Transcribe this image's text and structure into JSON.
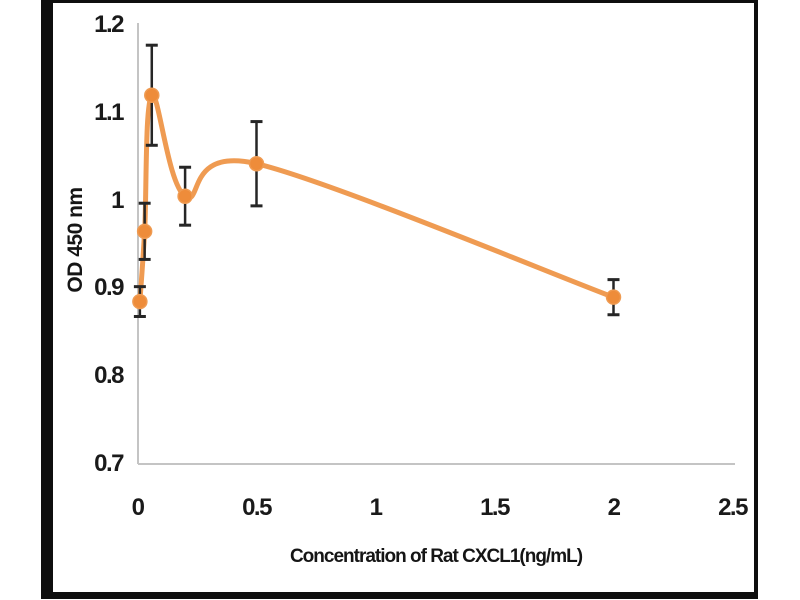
{
  "chart_data": {
    "type": "line",
    "title": "",
    "xlabel": "Concentration of Rat CXCL1(ng/mL)",
    "ylabel": "OD 450 nm",
    "x": [
      0.01,
      0.03,
      0.06,
      0.2,
      0.5,
      2
    ],
    "series": [
      {
        "name": "Rat CXCL1",
        "values": [
          0.885,
          0.965,
          1.12,
          1.005,
          1.042,
          0.89
        ],
        "errors": [
          0.017,
          0.032,
          0.057,
          0.033,
          0.048,
          0.02
        ]
      }
    ],
    "xlim": [
      0,
      2.5
    ],
    "ylim": [
      0.7,
      1.2
    ],
    "x_tick_labels": [
      "0",
      "0.5",
      "1",
      "1.5",
      "2",
      "2.5"
    ],
    "x_tick_values": [
      0,
      0.5,
      1,
      1.5,
      2,
      2.5
    ],
    "y_tick_labels": [
      "1.2",
      "1.1",
      "1",
      "0.9",
      "0.8",
      "0.7"
    ],
    "y_tick_values": [
      1.2,
      1.1,
      1,
      0.9,
      0.8,
      0.7
    ],
    "grid": false,
    "legend": "none",
    "marker": "circle",
    "error_bars": true
  },
  "colors": {
    "line": "#ef9b52",
    "marker": "#ee8c3a",
    "error_bar": "#262626",
    "axis_line": "#c4c4c4",
    "tick_text": "#1a1a1a",
    "frame": "#0e0e0e",
    "background": "#ffffff"
  }
}
